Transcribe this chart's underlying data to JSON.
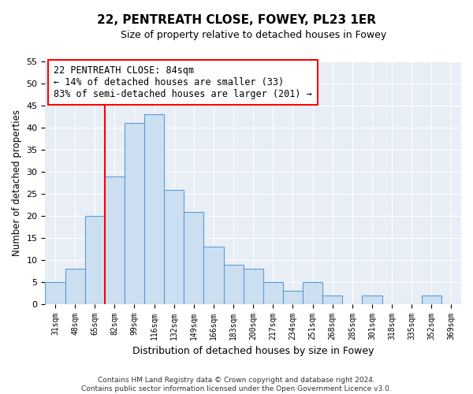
{
  "title": "22, PENTREATH CLOSE, FOWEY, PL23 1ER",
  "subtitle": "Size of property relative to detached houses in Fowey",
  "xlabel": "Distribution of detached houses by size in Fowey",
  "ylabel": "Number of detached properties",
  "bin_labels": [
    "31sqm",
    "48sqm",
    "65sqm",
    "82sqm",
    "99sqm",
    "116sqm",
    "132sqm",
    "149sqm",
    "166sqm",
    "183sqm",
    "200sqm",
    "217sqm",
    "234sqm",
    "251sqm",
    "268sqm",
    "285sqm",
    "301sqm",
    "318sqm",
    "335sqm",
    "352sqm",
    "369sqm"
  ],
  "bar_heights": [
    5,
    8,
    20,
    29,
    41,
    43,
    26,
    21,
    13,
    9,
    8,
    5,
    3,
    5,
    2,
    0,
    2,
    0,
    0,
    2,
    0
  ],
  "bar_color": "#ccdff0",
  "bar_edge_color": "#5b9bd5",
  "vline_x": 3.0,
  "vline_color": "red",
  "ylim": [
    0,
    55
  ],
  "yticks": [
    0,
    5,
    10,
    15,
    20,
    25,
    30,
    35,
    40,
    45,
    50,
    55
  ],
  "annotation_title": "22 PENTREATH CLOSE: 84sqm",
  "annotation_line1": "← 14% of detached houses are smaller (33)",
  "annotation_line2": "83% of semi-detached houses are larger (201) →",
  "annotation_box_color": "#ffffff",
  "annotation_box_edge": "red",
  "footer_line1": "Contains HM Land Registry data © Crown copyright and database right 2024.",
  "footer_line2": "Contains public sector information licensed under the Open Government Licence v3.0.",
  "background_color": "#ffffff",
  "plot_bg_color": "#e8eef5",
  "grid_color": "#ffffff"
}
